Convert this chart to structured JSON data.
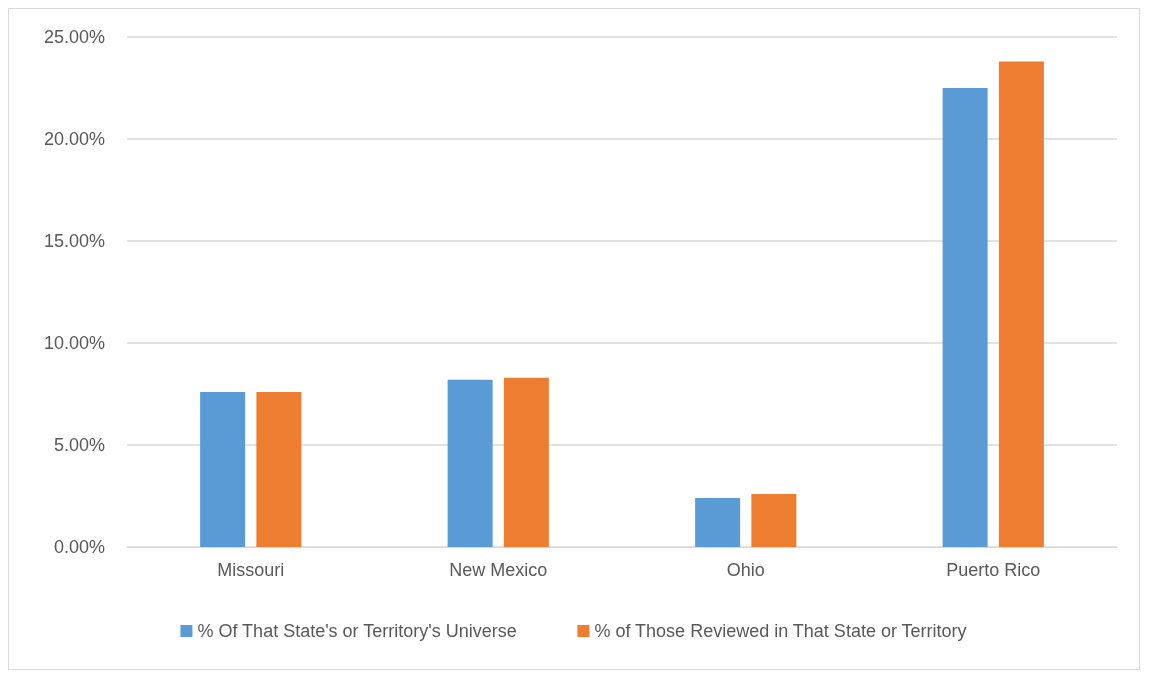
{
  "chart_data": {
    "type": "bar",
    "categories": [
      "Missouri",
      "New Mexico",
      "Ohio",
      "Puerto Rico"
    ],
    "series": [
      {
        "name": "% Of That State's or Territory's Universe",
        "color": "#5b9bd5",
        "values": [
          7.6,
          8.2,
          2.4,
          22.5
        ]
      },
      {
        "name": "% of Those Reviewed in That State or Territory",
        "color": "#ed7d31",
        "values": [
          7.6,
          8.3,
          2.6,
          23.8
        ]
      }
    ],
    "ylim": [
      0,
      25
    ],
    "yticks": [
      {
        "value": 0,
        "label": "0.00%"
      },
      {
        "value": 5,
        "label": "5.00%"
      },
      {
        "value": 10,
        "label": "10.00%"
      },
      {
        "value": 15,
        "label": "15.00%"
      },
      {
        "value": 20,
        "label": "20.00%"
      },
      {
        "value": 25,
        "label": "25.00%"
      }
    ],
    "grid": "y",
    "legend": "bottom"
  }
}
